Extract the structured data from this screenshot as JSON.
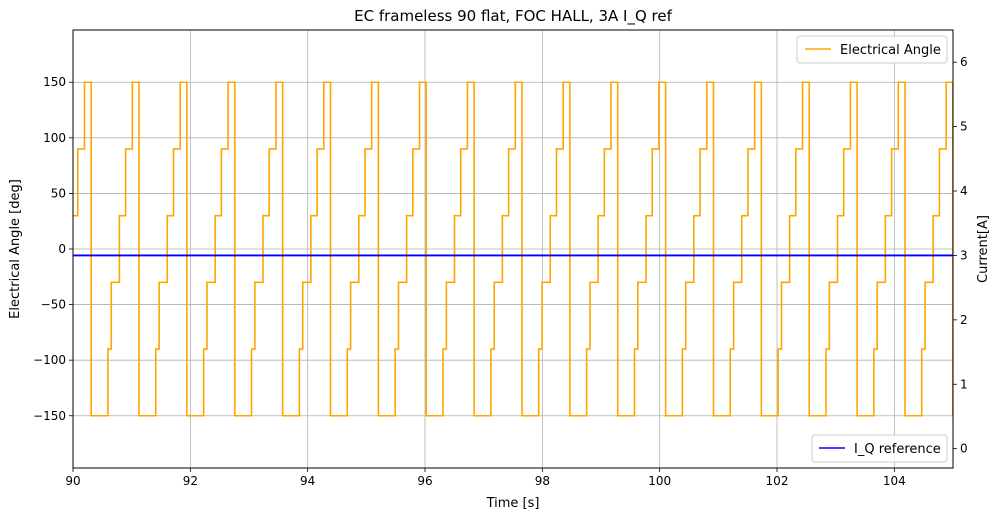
{
  "chart_data": {
    "type": "line",
    "title": "EC frameless 90 flat, FOC HALL, 3A I_Q ref",
    "xlabel": "Time [s]",
    "ylabel_left": "Electrical Angle [deg]",
    "ylabel_right": "Current[A]",
    "xlim": [
      90,
      105
    ],
    "ylim_left": [
      -197,
      197
    ],
    "ylim_right": [
      -0.3,
      6.5
    ],
    "x_ticks": [
      90,
      92,
      94,
      96,
      98,
      100,
      102,
      104
    ],
    "x_tick_labels": [
      "90",
      "92",
      "94",
      "96",
      "98",
      "100",
      "102",
      "104"
    ],
    "y_left_ticks": [
      150,
      100,
      50,
      0,
      -50,
      -100,
      -150
    ],
    "y_left_tick_labels": [
      "150",
      "100",
      "50",
      "0",
      "−50",
      "−100",
      "−150"
    ],
    "y_right_ticks": [
      6,
      5,
      4,
      3,
      2,
      1,
      0
    ],
    "y_right_tick_labels": [
      "6",
      "5",
      "4",
      "3",
      "2",
      "1",
      "0"
    ],
    "grid": true,
    "series": [
      {
        "name": "Electrical Angle",
        "axis": "left",
        "color": "#ffa500",
        "step": true,
        "period": 0.816,
        "first_fall": 90.595,
        "levels": [
          -90,
          -30,
          30,
          90,
          150,
          -150
        ],
        "level_fractions": [
          0.07,
          0.17,
          0.13,
          0.14,
          0.14,
          0.35
        ],
        "x_end": 105
      },
      {
        "name": "I_Q reference",
        "axis": "right",
        "color": "#0000ff",
        "x": [
          90,
          105
        ],
        "y": [
          3.0,
          3.0
        ]
      }
    ],
    "legends": [
      {
        "label": "Electrical Angle",
        "placement": "upper right"
      },
      {
        "label": "I_Q reference",
        "placement": "lower right"
      }
    ]
  }
}
